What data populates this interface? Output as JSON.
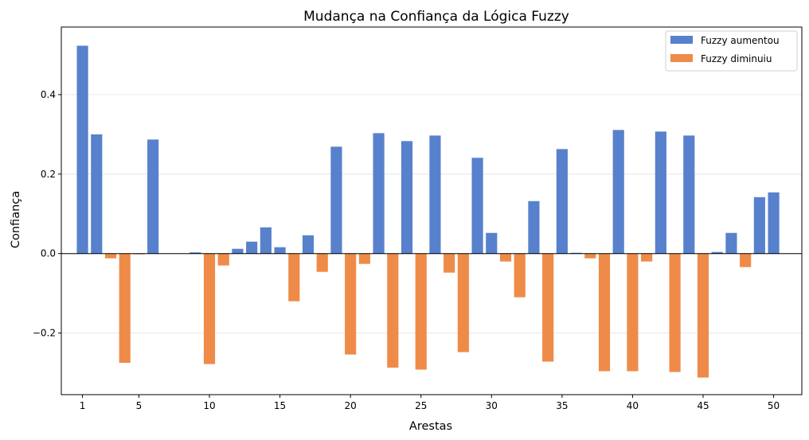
{
  "chart_data": {
    "type": "bar",
    "title": "Mudança na Confiança da Lógica Fuzzy",
    "xlabel": "Arestas",
    "ylabel": "Confiança",
    "x_ticks": [
      1,
      5,
      10,
      15,
      20,
      25,
      30,
      35,
      40,
      45,
      50
    ],
    "y_ticks": [
      -0.2,
      0.0,
      0.2,
      0.4
    ],
    "y_tick_labels": [
      "−0.2",
      "0.0",
      "0.2",
      "0.4"
    ],
    "xlim": [
      -0.5,
      52.0
    ],
    "ylim": [
      -0.355,
      0.57
    ],
    "grid": "y",
    "legend_position": "top-right",
    "series": [
      {
        "name": "Fuzzy aumentou",
        "color": "#5781cc",
        "points": [
          {
            "x": 1,
            "y": 0.523
          },
          {
            "x": 2,
            "y": 0.3
          },
          {
            "x": 6,
            "y": 0.287
          },
          {
            "x": 9,
            "y": 0.003
          },
          {
            "x": 12,
            "y": 0.012
          },
          {
            "x": 13,
            "y": 0.03
          },
          {
            "x": 14,
            "y": 0.066
          },
          {
            "x": 15,
            "y": 0.016
          },
          {
            "x": 17,
            "y": 0.046
          },
          {
            "x": 19,
            "y": 0.269
          },
          {
            "x": 22,
            "y": 0.303
          },
          {
            "x": 24,
            "y": 0.283
          },
          {
            "x": 26,
            "y": 0.297
          },
          {
            "x": 29,
            "y": 0.241
          },
          {
            "x": 30,
            "y": 0.052
          },
          {
            "x": 33,
            "y": 0.132
          },
          {
            "x": 35,
            "y": 0.263
          },
          {
            "x": 36,
            "y": 0.002
          },
          {
            "x": 39,
            "y": 0.311
          },
          {
            "x": 42,
            "y": 0.307
          },
          {
            "x": 44,
            "y": 0.297
          },
          {
            "x": 46,
            "y": 0.004
          },
          {
            "x": 47,
            "y": 0.052
          },
          {
            "x": 49,
            "y": 0.142
          },
          {
            "x": 50,
            "y": 0.154
          }
        ]
      },
      {
        "name": "Fuzzy diminuiu",
        "color": "#ef8b48",
        "points": [
          {
            "x": 3,
            "y": -0.012
          },
          {
            "x": 4,
            "y": -0.275
          },
          {
            "x": 5,
            "y": -0.002
          },
          {
            "x": 10,
            "y": -0.278
          },
          {
            "x": 11,
            "y": -0.03
          },
          {
            "x": 16,
            "y": -0.12
          },
          {
            "x": 18,
            "y": -0.046
          },
          {
            "x": 20,
            "y": -0.254
          },
          {
            "x": 21,
            "y": -0.026
          },
          {
            "x": 23,
            "y": -0.287
          },
          {
            "x": 25,
            "y": -0.292
          },
          {
            "x": 27,
            "y": -0.048
          },
          {
            "x": 28,
            "y": -0.248
          },
          {
            "x": 31,
            "y": -0.02
          },
          {
            "x": 32,
            "y": -0.11
          },
          {
            "x": 34,
            "y": -0.272
          },
          {
            "x": 37,
            "y": -0.012
          },
          {
            "x": 38,
            "y": -0.296
          },
          {
            "x": 40,
            "y": -0.296
          },
          {
            "x": 41,
            "y": -0.02
          },
          {
            "x": 43,
            "y": -0.298
          },
          {
            "x": 45,
            "y": -0.312
          },
          {
            "x": 48,
            "y": -0.034
          }
        ]
      }
    ]
  }
}
